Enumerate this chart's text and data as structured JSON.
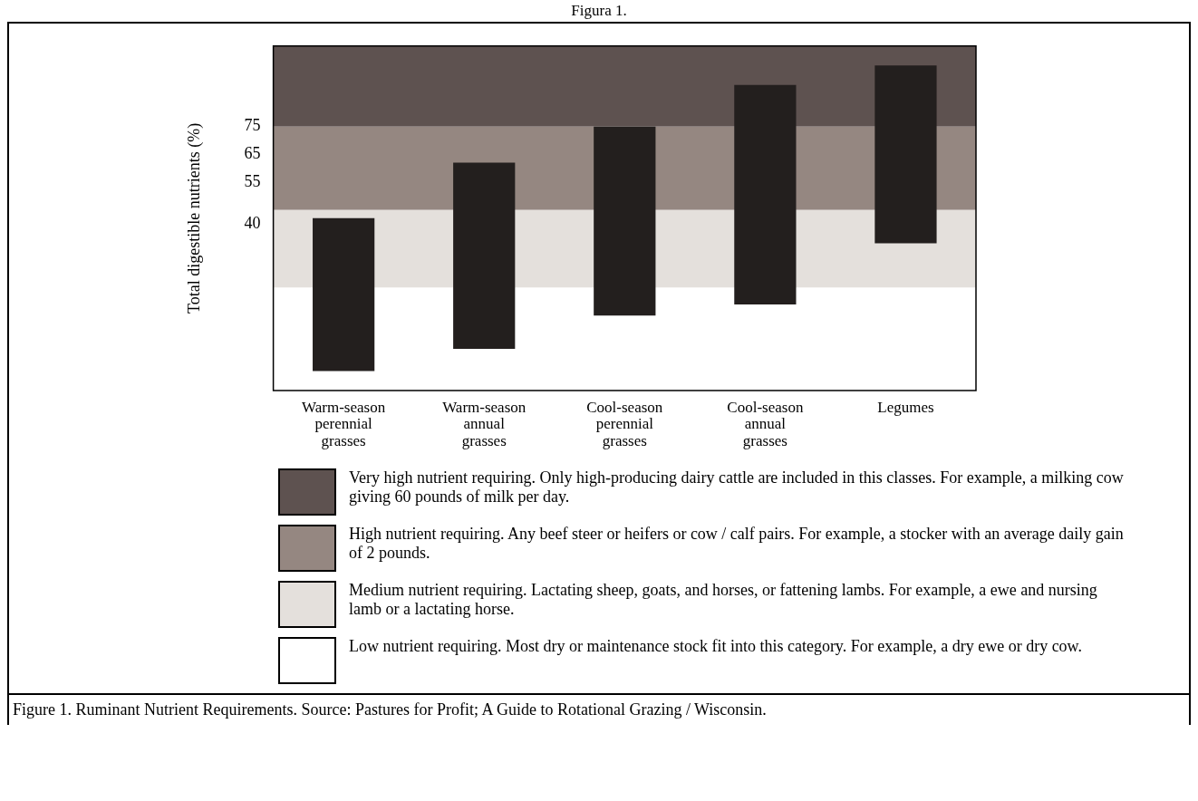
{
  "chart_data": [
    {
      "type": "bar",
      "title": "Figura 1.",
      "ylabel": "Total digestible nutrients (%)",
      "categories": [
        "Warm-season perennial grasses",
        "Warm-season annual grasses",
        "Cool-season perennial grasses",
        "Cool-season annual grasses",
        "Legumes"
      ],
      "values": [
        55,
        67,
        68,
        79,
        64
      ],
      "base": [
        -13,
        -5,
        7,
        11,
        33
      ],
      "color": "#231f1e",
      "ylim": [
        -20,
        104
      ],
      "yticks": [
        40,
        55,
        65,
        75
      ],
      "grid": false,
      "bands": [
        {
          "axis": "y",
          "from": 75,
          "to": 104,
          "color": "#5e5250"
        },
        {
          "axis": "y",
          "from": 45,
          "to": 75,
          "color": "#958781"
        },
        {
          "axis": "y",
          "from": 17,
          "to": 45,
          "color": "#e4e0dc"
        },
        {
          "axis": "y",
          "from": -20,
          "to": 17,
          "color": "#ffffff"
        }
      ],
      "annotations": [
        "Figure 1. Ruminant Nutrient Requirements. Source: Pastures for Profit; A Guide to Rotational Grazing / Wisconsin."
      ]
    },
    {
      "type": "other",
      "annotations": [
        "Very high nutrient requiring. Only high-producing dairy cattle are included in this classes. For example, a milking cow giving 60 pounds of milk per day.",
        "High nutrient requiring. Any beef steer or heifers or cow / calf pairs. For example, a stocker with an average daily gain of 2 pounds.",
        "Medium nutrient requiring. Lactating sheep, goats, and horses, or fattening lambs. For example, a ewe and nursing lamb or a lactating horse.",
        "Low nutrient requiring. Most dry or maintenance stock fit into this category. For example, a dry ewe or dry cow."
      ]
    }
  ]
}
